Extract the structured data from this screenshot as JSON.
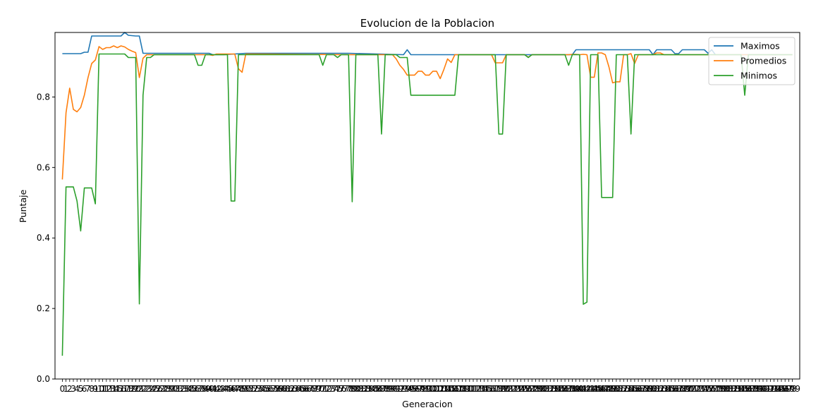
{
  "chart_data": {
    "type": "line",
    "title": "Evolucion de la Poblacion",
    "xlabel": "Generacion",
    "ylabel": "Puntaje",
    "xlim": [
      -2,
      201
    ],
    "ylim": [
      0.0,
      0.983
    ],
    "yticks": [
      0.0,
      0.2,
      0.4,
      0.6,
      0.8
    ],
    "ytick_labels": [
      "0.0",
      "0.2",
      "0.4",
      "0.6",
      "0.8"
    ],
    "xticks": [
      0,
      199
    ],
    "xtick_labels_start": 0,
    "xtick_labels_end": 199,
    "legend_position": "top-right",
    "grid": false,
    "colors": {
      "Maximos": "#1f77b4",
      "Promedios": "#ff7f0e",
      "Minimos": "#2ca02c"
    },
    "series": [
      {
        "name": "Maximos",
        "points": [
          [
            0,
            0.923
          ],
          [
            5,
            0.923
          ],
          [
            6,
            0.927
          ],
          [
            7,
            0.927
          ],
          [
            8,
            0.973
          ],
          [
            16,
            0.973
          ],
          [
            17,
            0.983
          ],
          [
            18,
            0.975
          ],
          [
            20,
            0.973
          ],
          [
            21,
            0.973
          ],
          [
            22,
            0.924
          ],
          [
            40,
            0.924
          ],
          [
            41,
            0.92
          ],
          [
            44,
            0.92
          ],
          [
            50,
            0.924
          ],
          [
            78,
            0.924
          ],
          [
            93,
            0.92
          ],
          [
            94,
            0.934
          ],
          [
            95,
            0.92
          ],
          [
            139,
            0.92
          ],
          [
            140,
            0.934
          ],
          [
            160,
            0.934
          ],
          [
            161,
            0.92
          ],
          [
            162,
            0.934
          ],
          [
            166,
            0.934
          ],
          [
            167,
            0.923
          ],
          [
            168,
            0.923
          ],
          [
            169,
            0.934
          ],
          [
            175,
            0.934
          ],
          [
            176,
            0.924
          ],
          [
            177,
            0.934
          ],
          [
            178,
            0.92
          ],
          [
            199,
            0.92
          ]
        ]
      },
      {
        "name": "Promedios",
        "points": [
          [
            0,
            0.566
          ],
          [
            1,
            0.755
          ],
          [
            2,
            0.825
          ],
          [
            3,
            0.765
          ],
          [
            4,
            0.758
          ],
          [
            5,
            0.77
          ],
          [
            6,
            0.805
          ],
          [
            7,
            0.855
          ],
          [
            8,
            0.895
          ],
          [
            9,
            0.905
          ],
          [
            10,
            0.943
          ],
          [
            11,
            0.935
          ],
          [
            12,
            0.94
          ],
          [
            13,
            0.94
          ],
          [
            14,
            0.945
          ],
          [
            15,
            0.94
          ],
          [
            16,
            0.945
          ],
          [
            17,
            0.942
          ],
          [
            18,
            0.935
          ],
          [
            19,
            0.93
          ],
          [
            20,
            0.926
          ],
          [
            21,
            0.855
          ],
          [
            22,
            0.91
          ],
          [
            23,
            0.92
          ],
          [
            40,
            0.92
          ],
          [
            41,
            0.918
          ],
          [
            42,
            0.922
          ],
          [
            47,
            0.922
          ],
          [
            48,
            0.88
          ],
          [
            49,
            0.87
          ],
          [
            50,
            0.922
          ],
          [
            78,
            0.92
          ],
          [
            90,
            0.92
          ],
          [
            91,
            0.908
          ],
          [
            92,
            0.89
          ],
          [
            93,
            0.878
          ],
          [
            94,
            0.862
          ],
          [
            95,
            0.862
          ],
          [
            96,
            0.862
          ],
          [
            97,
            0.873
          ],
          [
            98,
            0.873
          ],
          [
            99,
            0.862
          ],
          [
            100,
            0.862
          ],
          [
            101,
            0.873
          ],
          [
            102,
            0.873
          ],
          [
            103,
            0.852
          ],
          [
            104,
            0.878
          ],
          [
            105,
            0.908
          ],
          [
            106,
            0.898
          ],
          [
            107,
            0.92
          ],
          [
            117,
            0.92
          ],
          [
            118,
            0.897
          ],
          [
            119,
            0.897
          ],
          [
            120,
            0.897
          ],
          [
            121,
            0.92
          ],
          [
            126,
            0.92
          ],
          [
            127,
            0.913
          ],
          [
            128,
            0.92
          ],
          [
            138,
            0.92
          ],
          [
            139,
            0.921
          ],
          [
            140,
            0.921
          ],
          [
            141,
            0.92
          ],
          [
            142,
            0.921
          ],
          [
            143,
            0.92
          ],
          [
            144,
            0.856
          ],
          [
            145,
            0.856
          ],
          [
            146,
            0.925
          ],
          [
            147,
            0.925
          ],
          [
            148,
            0.92
          ],
          [
            149,
            0.885
          ],
          [
            150,
            0.84
          ],
          [
            151,
            0.843
          ],
          [
            152,
            0.843
          ],
          [
            153,
            0.92
          ],
          [
            154,
            0.92
          ],
          [
            155,
            0.923
          ],
          [
            156,
            0.895
          ],
          [
            157,
            0.92
          ],
          [
            161,
            0.92
          ],
          [
            162,
            0.925
          ],
          [
            163,
            0.925
          ],
          [
            164,
            0.92
          ],
          [
            199,
            0.92
          ]
        ]
      },
      {
        "name": "Minimos",
        "points": [
          [
            0,
            0.066
          ],
          [
            1,
            0.545
          ],
          [
            2,
            0.545
          ],
          [
            3,
            0.545
          ],
          [
            4,
            0.505
          ],
          [
            5,
            0.42
          ],
          [
            6,
            0.542
          ],
          [
            7,
            0.542
          ],
          [
            8,
            0.542
          ],
          [
            9,
            0.497
          ],
          [
            10,
            0.922
          ],
          [
            17,
            0.922
          ],
          [
            18,
            0.912
          ],
          [
            19,
            0.912
          ],
          [
            20,
            0.912
          ],
          [
            21,
            0.213
          ],
          [
            22,
            0.805
          ],
          [
            23,
            0.912
          ],
          [
            24,
            0.912
          ],
          [
            25,
            0.92
          ],
          [
            36,
            0.92
          ],
          [
            37,
            0.89
          ],
          [
            38,
            0.89
          ],
          [
            39,
            0.92
          ],
          [
            45,
            0.92
          ],
          [
            46,
            0.505
          ],
          [
            47,
            0.505
          ],
          [
            48,
            0.92
          ],
          [
            70,
            0.92
          ],
          [
            71,
            0.89
          ],
          [
            72,
            0.92
          ],
          [
            74,
            0.92
          ],
          [
            75,
            0.912
          ],
          [
            76,
            0.92
          ],
          [
            78,
            0.92
          ],
          [
            79,
            0.503
          ],
          [
            80,
            0.92
          ],
          [
            86,
            0.92
          ],
          [
            87,
            0.695
          ],
          [
            88,
            0.92
          ],
          [
            91,
            0.92
          ],
          [
            92,
            0.912
          ],
          [
            93,
            0.912
          ],
          [
            94,
            0.912
          ],
          [
            95,
            0.805
          ],
          [
            107,
            0.805
          ],
          [
            108,
            0.92
          ],
          [
            118,
            0.92
          ],
          [
            119,
            0.695
          ],
          [
            120,
            0.695
          ],
          [
            121,
            0.92
          ],
          [
            126,
            0.92
          ],
          [
            127,
            0.912
          ],
          [
            128,
            0.92
          ],
          [
            137,
            0.92
          ],
          [
            138,
            0.89
          ],
          [
            139,
            0.92
          ],
          [
            141,
            0.92
          ],
          [
            142,
            0.212
          ],
          [
            143,
            0.218
          ],
          [
            144,
            0.92
          ],
          [
            146,
            0.92
          ],
          [
            147,
            0.515
          ],
          [
            148,
            0.515
          ],
          [
            149,
            0.515
          ],
          [
            150,
            0.515
          ],
          [
            151,
            0.92
          ],
          [
            154,
            0.92
          ],
          [
            155,
            0.695
          ],
          [
            156,
            0.92
          ],
          [
            185,
            0.92
          ],
          [
            186,
            0.805
          ],
          [
            187,
            0.92
          ],
          [
            199,
            0.92
          ]
        ]
      }
    ]
  }
}
